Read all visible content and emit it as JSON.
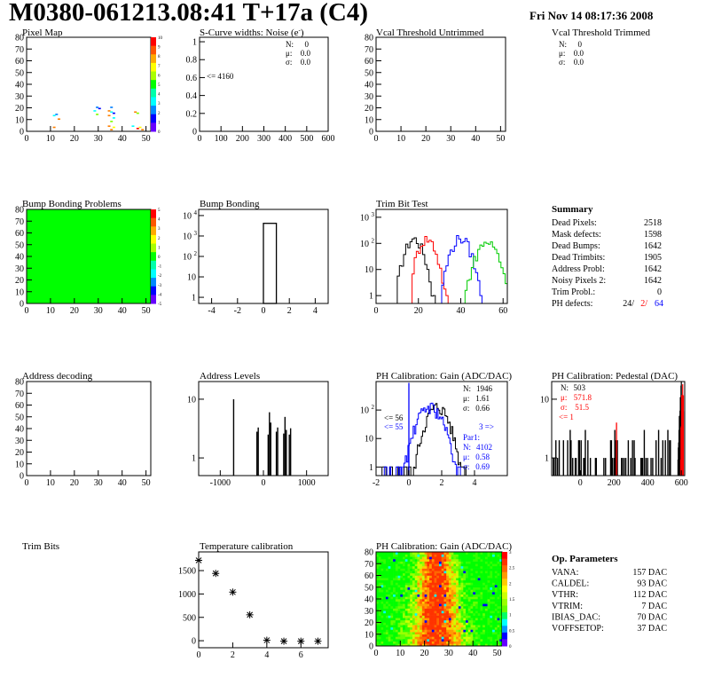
{
  "header": {
    "title": "M0380-061213.08:41 T+17a (C4)",
    "datetime": "Fri Nov 14 08:17:36 2008"
  },
  "colors": {
    "hist_black": "#000000",
    "hist_red": "#ff0000",
    "hist_blue": "#0000ff",
    "hist_green": "#00cc00",
    "bump_map_fill": "#00ff00",
    "palette": [
      "#ff0000",
      "#ff7f00",
      "#ffff00",
      "#7fff00",
      "#00ff00",
      "#00ffff",
      "#007fff",
      "#0000ff",
      "#7f00ff"
    ]
  },
  "chart_data": [
    {
      "id": "pixel_map",
      "type": "heatmap",
      "title": "Pixel Map",
      "xlim": [
        0,
        52
      ],
      "ylim": [
        0,
        80
      ],
      "xticks": [
        0,
        10,
        20,
        30,
        40,
        50
      ],
      "yticks": [
        0,
        10,
        20,
        30,
        40,
        50,
        60,
        70,
        80
      ],
      "palette_ticks": [
        0,
        1,
        2,
        3,
        4,
        5,
        6,
        7,
        8,
        9,
        10
      ],
      "cells": [
        {
          "x": 12,
          "y": 14,
          "v": 6
        },
        {
          "x": 11,
          "y": 13,
          "v": 5
        },
        {
          "x": 13,
          "y": 10,
          "v": 1
        },
        {
          "x": 11,
          "y": 3,
          "v": 1
        },
        {
          "x": 29,
          "y": 20,
          "v": 6
        },
        {
          "x": 30,
          "y": 19,
          "v": 7
        },
        {
          "x": 28,
          "y": 17,
          "v": 5
        },
        {
          "x": 29,
          "y": 14,
          "v": 3
        },
        {
          "x": 35,
          "y": 20,
          "v": 6
        },
        {
          "x": 34,
          "y": 17,
          "v": 1
        },
        {
          "x": 35,
          "y": 16,
          "v": 5
        },
        {
          "x": 36,
          "y": 15,
          "v": 7
        },
        {
          "x": 34,
          "y": 13,
          "v": 1
        },
        {
          "x": 36,
          "y": 11,
          "v": 5
        },
        {
          "x": 35,
          "y": 8,
          "v": 3
        },
        {
          "x": 34,
          "y": 4,
          "v": 1
        },
        {
          "x": 35,
          "y": 1,
          "v": 1
        },
        {
          "x": 36,
          "y": 3,
          "v": 2
        },
        {
          "x": 45,
          "y": 16,
          "v": 1
        },
        {
          "x": 46,
          "y": 15,
          "v": 3
        },
        {
          "x": 44,
          "y": 4,
          "v": 5
        },
        {
          "x": 46,
          "y": 2,
          "v": 0
        },
        {
          "x": 48,
          "y": 1,
          "v": 1
        },
        {
          "x": 47,
          "y": 3,
          "v": 2
        }
      ]
    },
    {
      "id": "scurve_noise",
      "type": "bar",
      "title": "S-Curve widths: Noise (e",
      "title_suffix": ")",
      "title_superscript": "-",
      "xlim": [
        0,
        600
      ],
      "ylim": [
        0,
        1.05
      ],
      "xticks": [
        0,
        100,
        200,
        300,
        400,
        500,
        600
      ],
      "yticks": [
        0,
        0.2,
        0.4,
        0.6,
        0.8,
        1
      ],
      "stats": {
        "N": "0",
        "mu": "0.0",
        "sigma": "0.0"
      },
      "annotation": "<= 4160"
    },
    {
      "id": "vcal_untrimmed",
      "type": "heatmap",
      "title": "Vcal Threshold Untrimmed",
      "xlim": [
        0,
        52
      ],
      "ylim": [
        0,
        80
      ],
      "xticks": [
        0,
        10,
        20,
        30,
        40,
        50
      ],
      "yticks": [
        0,
        10,
        20,
        30,
        40,
        50,
        60,
        70,
        80
      ]
    },
    {
      "id": "vcal_trimmed",
      "type": "bar",
      "title": "Vcal Threshold Trimmed",
      "stats": {
        "N": "0",
        "mu": "0.0",
        "sigma": "0.0"
      }
    },
    {
      "id": "bump_bonding_problems",
      "type": "heatmap",
      "title": "Bump Bonding Problems",
      "xlim": [
        0,
        52
      ],
      "ylim": [
        0,
        80
      ],
      "xticks": [
        0,
        10,
        20,
        30,
        40,
        50
      ],
      "yticks": [
        0,
        10,
        20,
        30,
        40,
        50,
        60,
        70,
        80
      ],
      "palette_ticks": [
        -5,
        -4,
        -3,
        -2,
        -1,
        0,
        1,
        2,
        3,
        4,
        5
      ],
      "uniform_value": 0
    },
    {
      "id": "bump_bonding",
      "type": "bar",
      "title": "Bump Bonding",
      "log_y": true,
      "xlim": [
        -5,
        5
      ],
      "ylim": [
        0.5,
        20000
      ],
      "xticks": [
        -4,
        -2,
        0,
        2,
        4
      ],
      "yticks": [
        1,
        10,
        100,
        1000,
        10000
      ],
      "bars": [
        {
          "x0": 0,
          "x1": 1,
          "value": 4160
        }
      ]
    },
    {
      "id": "trim_bit_test",
      "type": "line",
      "title": "Trim Bit Test",
      "log_y": true,
      "xlim": [
        0,
        62
      ],
      "ylim": [
        0.5,
        2000
      ],
      "xticks": [
        0,
        20,
        40,
        60
      ],
      "yticks": [
        1,
        10,
        100,
        1000
      ],
      "series": [
        {
          "color": "#000000",
          "mean": 18,
          "sigma": 2.8,
          "peak": 150,
          "range": [
            10,
            27
          ]
        },
        {
          "color": "#ff0000",
          "mean": 24,
          "sigma": 2.8,
          "peak": 150,
          "range": [
            17,
            33
          ]
        },
        {
          "color": "#0000ff",
          "mean": 40,
          "sigma": 3.0,
          "peak": 160,
          "range": [
            31,
            49
          ]
        },
        {
          "color": "#00cc00",
          "mean": 52.5,
          "sigma": 3.4,
          "peak": 110,
          "range": [
            42,
            61
          ]
        }
      ]
    },
    {
      "id": "summary",
      "type": "table",
      "title": "Summary",
      "rows": [
        {
          "label": "Dead Pixels:",
          "value": "2518"
        },
        {
          "label": "Mask defects:",
          "value": "1598"
        },
        {
          "label": "Dead Bumps:",
          "value": "1642"
        },
        {
          "label": "Dead Trimbits:",
          "value": "1905"
        },
        {
          "label": "Address Probl:",
          "value": "1642"
        },
        {
          "label": "Noisy Pixels 2:",
          "value": "1642"
        },
        {
          "label": "Trim Probl.:",
          "value": "0"
        }
      ],
      "ph_defects": {
        "label": "PH defects:",
        "values": [
          "24/",
          "2/",
          "64"
        ]
      }
    },
    {
      "id": "address_decoding",
      "type": "heatmap",
      "title": "Address decoding",
      "xlim": [
        0,
        52
      ],
      "ylim": [
        0,
        80
      ],
      "xticks": [
        0,
        10,
        20,
        30,
        40,
        50
      ],
      "yticks": [
        0,
        10,
        20,
        30,
        40,
        50,
        60,
        70,
        80
      ]
    },
    {
      "id": "address_levels",
      "type": "bar",
      "title": "Address Levels",
      "log_y": true,
      "xlim": [
        -1500,
        1500
      ],
      "ylim": [
        0.5,
        20
      ],
      "xticks": [
        -1000,
        0,
        1000
      ],
      "yticks": [
        1,
        10
      ],
      "bars": [
        {
          "x": -690,
          "value": 10
        },
        {
          "x": -150,
          "value": 2.8
        },
        {
          "x": -120,
          "value": 3.3
        },
        {
          "x": 110,
          "value": 2.5
        },
        {
          "x": 140,
          "value": 6.0
        },
        {
          "x": 170,
          "value": 4.0
        },
        {
          "x": 300,
          "value": 2.8
        },
        {
          "x": 330,
          "value": 3.3
        },
        {
          "x": 470,
          "value": 2.6
        },
        {
          "x": 500,
          "value": 5.0
        },
        {
          "x": 530,
          "value": 3.0
        },
        {
          "x": 600,
          "value": 2.5
        },
        {
          "x": 630,
          "value": 3.2
        }
      ]
    },
    {
      "id": "ph_gain",
      "type": "line",
      "title": "PH Calibration: Gain (ADC/DAC)",
      "log_y": true,
      "xlim": [
        -2,
        6
      ],
      "ylim": [
        0.5,
        1000
      ],
      "xticks": [
        -2,
        0,
        2,
        4
      ],
      "yticks": [
        1,
        10,
        100
      ],
      "stats_black": {
        "N": "1946",
        "mu": "1.61",
        "sigma": "0.66"
      },
      "stats_blue": {
        "name": "Par1:",
        "N": "4102",
        "mu": "0.58",
        "sigma": "0.69"
      },
      "annotations": {
        "under_black": "<= 56",
        "under_blue": "<= 55",
        "over_blue": "3 =>"
      },
      "series": [
        {
          "color": "#000000",
          "mean": 1.7,
          "sigma": 0.45,
          "peak": 130,
          "range": [
            -1.8,
            3.5
          ]
        },
        {
          "color": "#0000ff",
          "mean": 1.25,
          "sigma": 0.5,
          "peak": 130,
          "range": [
            -1.5,
            3.2
          ]
        }
      ],
      "spikes": [
        {
          "x": 0.0,
          "value": 900,
          "color": "#0000ff"
        }
      ]
    },
    {
      "id": "ph_pedestal",
      "type": "line",
      "title": "PH Calibration: Pedestal (DAC)",
      "log_y": true,
      "xlim": [
        -170,
        620
      ],
      "ylim": [
        0.5,
        20
      ],
      "xticks": [
        0,
        200,
        400,
        600
      ],
      "yticks": [
        1,
        10
      ],
      "stats_black": {
        "N": "503"
      },
      "stats_red": {
        "mu": "571.8",
        "sigma": "51.5",
        "under": "<= 1"
      },
      "series": [
        {
          "color": "#000000",
          "mean": 600,
          "sigma": 8,
          "peak": 15,
          "range": [
            560,
            612
          ]
        },
        {
          "color": "#ff0000",
          "mean": 607,
          "sigma": 5,
          "peak": 14,
          "range": [
            590,
            612
          ]
        }
      ],
      "spikes": [
        {
          "x": 215,
          "value": 4,
          "color": "#ff0000"
        }
      ]
    },
    {
      "id": "trim_bits",
      "type": "heatmap",
      "title": "Trim Bits"
    },
    {
      "id": "temperature_calibration",
      "type": "scatter",
      "title": "Temperature calibration",
      "xlim": [
        0,
        7.6
      ],
      "ylim": [
        -150,
        1900
      ],
      "xticks": [
        0,
        2,
        4,
        6
      ],
      "yticks": [
        0,
        500,
        1000,
        1500
      ],
      "x": [
        0,
        1,
        2,
        3,
        4,
        5,
        6,
        7
      ],
      "y": [
        1720,
        1440,
        1040,
        555,
        10,
        -10,
        -10,
        -10
      ]
    },
    {
      "id": "ph_gain_map",
      "type": "heatmap",
      "title": "PH Calibration: Gain (ADC/DAC)",
      "xlim": [
        0,
        52
      ],
      "ylim": [
        0,
        80
      ],
      "xticks": [
        0,
        10,
        20,
        30,
        40,
        50
      ],
      "yticks": [
        0,
        10,
        20,
        30,
        40,
        50,
        60,
        70,
        80
      ],
      "palette_ticks": [
        0,
        0.5,
        1,
        1.5,
        2,
        2.5,
        3
      ],
      "center_x": 25,
      "width": 4.5
    },
    {
      "id": "op_parameters",
      "type": "table",
      "title": "Op. Parameters",
      "rows": [
        {
          "label": "VANA:",
          "value": "157 DAC"
        },
        {
          "label": "CALDEL:",
          "value": "93 DAC"
        },
        {
          "label": "VTHR:",
          "value": "112 DAC"
        },
        {
          "label": "VTRIM:",
          "value": "7 DAC"
        },
        {
          "label": "IBIAS_DAC:",
          "value": "70 DAC"
        },
        {
          "label": "VOFFSETOP:",
          "value": "37 DAC"
        }
      ]
    }
  ]
}
